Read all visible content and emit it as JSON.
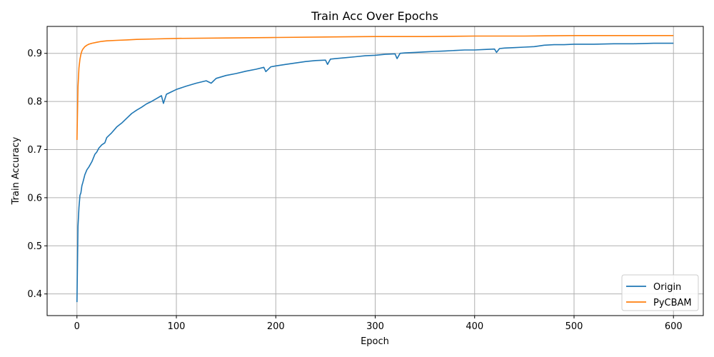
{
  "chart_data": {
    "type": "line",
    "title": "Train Acc Over Epochs",
    "xlabel": "Epoch",
    "ylabel": "Train Accuracy",
    "xlim": [
      -30,
      630
    ],
    "ylim": [
      0.355,
      0.956
    ],
    "xticks": [
      0,
      100,
      200,
      300,
      400,
      500,
      600
    ],
    "yticks": [
      0.4,
      0.5,
      0.6,
      0.7,
      0.8,
      0.9
    ],
    "ytick_labels": [
      "0.4",
      "0.5",
      "0.6",
      "0.7",
      "0.8",
      "0.9"
    ],
    "grid": true,
    "legend_position": "lower-right",
    "series": [
      {
        "name": "Origin",
        "color": "#1f77b4",
        "x": [
          0,
          1,
          2,
          3,
          4,
          5,
          6,
          7,
          8,
          10,
          12,
          15,
          18,
          20,
          22,
          25,
          28,
          30,
          35,
          40,
          45,
          50,
          55,
          60,
          65,
          70,
          75,
          80,
          85,
          87,
          90,
          95,
          100,
          110,
          120,
          130,
          135,
          140,
          150,
          160,
          170,
          180,
          188,
          190,
          195,
          200,
          210,
          220,
          230,
          240,
          250,
          252,
          255,
          260,
          270,
          280,
          290,
          300,
          310,
          320,
          322,
          325,
          330,
          340,
          350,
          360,
          370,
          380,
          390,
          400,
          410,
          420,
          422,
          425,
          430,
          440,
          450,
          460,
          470,
          480,
          490,
          500,
          520,
          540,
          560,
          580,
          600
        ],
        "y": [
          0.383,
          0.54,
          0.58,
          0.605,
          0.61,
          0.625,
          0.632,
          0.64,
          0.648,
          0.658,
          0.664,
          0.675,
          0.69,
          0.695,
          0.703,
          0.71,
          0.714,
          0.725,
          0.735,
          0.747,
          0.755,
          0.765,
          0.775,
          0.782,
          0.788,
          0.795,
          0.8,
          0.806,
          0.812,
          0.796,
          0.815,
          0.82,
          0.825,
          0.832,
          0.838,
          0.843,
          0.838,
          0.848,
          0.854,
          0.858,
          0.863,
          0.867,
          0.871,
          0.862,
          0.872,
          0.874,
          0.877,
          0.88,
          0.883,
          0.885,
          0.886,
          0.877,
          0.888,
          0.889,
          0.891,
          0.893,
          0.895,
          0.896,
          0.898,
          0.899,
          0.889,
          0.9,
          0.901,
          0.902,
          0.903,
          0.904,
          0.905,
          0.906,
          0.907,
          0.907,
          0.908,
          0.909,
          0.902,
          0.91,
          0.911,
          0.912,
          0.913,
          0.914,
          0.917,
          0.918,
          0.918,
          0.919,
          0.919,
          0.92,
          0.92,
          0.921,
          0.921
        ]
      },
      {
        "name": "PyCBAM",
        "color": "#ff7f0e",
        "x": [
          0,
          1,
          2,
          3,
          4,
          5,
          6,
          8,
          10,
          12,
          15,
          20,
          25,
          30,
          40,
          50,
          60,
          80,
          100,
          150,
          200,
          250,
          300,
          350,
          400,
          450,
          500,
          550,
          600
        ],
        "y": [
          0.72,
          0.83,
          0.87,
          0.888,
          0.898,
          0.905,
          0.909,
          0.914,
          0.917,
          0.919,
          0.921,
          0.923,
          0.925,
          0.926,
          0.927,
          0.928,
          0.929,
          0.93,
          0.931,
          0.932,
          0.933,
          0.934,
          0.935,
          0.935,
          0.936,
          0.936,
          0.937,
          0.937,
          0.937
        ]
      }
    ]
  }
}
